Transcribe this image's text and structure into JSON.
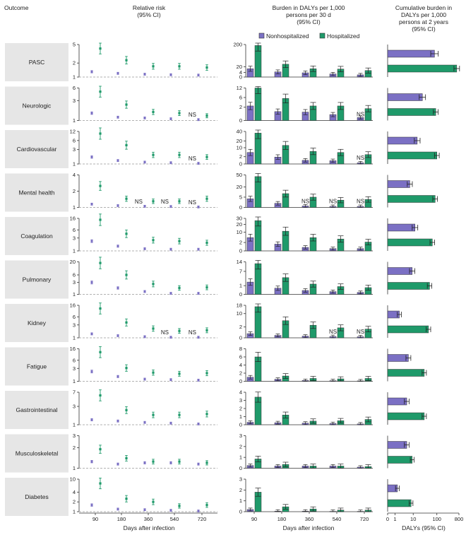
{
  "headers": {
    "outcome": "Outcome",
    "relative_risk": [
      "Relative risk",
      "(95% CI)"
    ],
    "burden": [
      "Burden in DALYs per 1,000",
      "persons per 30 d",
      "(95% CI)"
    ],
    "cumulative": [
      "Cumulative burden in",
      "DALYs per 1,000",
      "persons at 2 years",
      "(95% CI)"
    ]
  },
  "legend": {
    "nonhospitalized": "Nonhospitalized",
    "hospitalized": "Hospitalized"
  },
  "colors": {
    "nonhospitalized": "#7b70c4",
    "hospitalized": "#1f9a6a",
    "panel_bg": "#e6e6e6",
    "reference_line": "#999999"
  },
  "x_axis": {
    "days": [
      90,
      180,
      360,
      540,
      720
    ],
    "label": "Days after infection"
  },
  "cumulative_axis": {
    "label": "DALYs (95% CI)",
    "ticks": [
      0,
      1,
      10,
      100,
      800
    ],
    "scale": "symlog"
  },
  "ns_label": "NS",
  "chart_data": {
    "type": "forest-and-bar",
    "outcomes": [
      {
        "name": "PASC",
        "rr_ticks": [
          1,
          2,
          5
        ],
        "rr_max": 5,
        "rr_nonhosp": [
          1.3,
          1.2,
          1.15,
          1.12,
          1.1
        ],
        "rr_hosp": [
          4.1,
          2.3,
          1.7,
          1.7,
          1.6
        ],
        "rr_ns_nonhosp": [
          false,
          false,
          false,
          false,
          false
        ],
        "rr_ns_hosp": [
          false,
          false,
          false,
          false,
          false
        ],
        "burden_ticks": [
          0,
          4,
          20,
          200
        ],
        "burden_scale": "sqrt",
        "burden_max": 200,
        "burden_nonhosp": [
          13,
          5,
          3.4,
          1.8,
          0.9
        ],
        "burden_hosp": [
          188,
          31,
          13,
          12,
          8
        ],
        "burden_ns_nonhosp": [
          false,
          false,
          false,
          false,
          false
        ],
        "burden_ns_hosp": [
          false,
          false,
          false,
          false,
          false
        ],
        "cumulative_nonhosp": 80,
        "cumulative_hosp": 650
      },
      {
        "name": "Neurologic",
        "rr_ticks": [
          1,
          3,
          6
        ],
        "rr_max": 6,
        "rr_nonhosp": [
          1.5,
          1.2,
          1.15,
          1.1,
          1.05
        ],
        "rr_hosp": [
          4.9,
          2.4,
          1.6,
          1.5,
          1.3
        ],
        "rr_ns_nonhosp": [
          false,
          false,
          false,
          false,
          true
        ],
        "rr_ns_hosp": [
          false,
          false,
          false,
          false,
          false
        ],
        "burden_ticks": [
          0,
          2,
          6,
          12
        ],
        "burden_scale": "sqrt",
        "burden_max": 12,
        "burden_nonhosp": [
          2.4,
          0.9,
          0.8,
          0.4,
          0.1
        ],
        "burden_hosp": [
          12,
          5.5,
          2.4,
          2.4,
          1.6
        ],
        "burden_ns_nonhosp": [
          false,
          false,
          false,
          false,
          true
        ],
        "burden_ns_hosp": [
          false,
          false,
          false,
          false,
          false
        ],
        "cumulative_nonhosp": 25,
        "cumulative_hosp": 90
      },
      {
        "name": "Cardiovascular",
        "rr_ticks": [
          1,
          3,
          6,
          12
        ],
        "rr_max": 12,
        "rr_nonhosp": [
          1.7,
          1.3,
          1.15,
          1.1,
          1.05
        ],
        "rr_hosp": [
          10.2,
          4.2,
          2.0,
          2.0,
          1.7
        ],
        "rr_ns_nonhosp": [
          false,
          false,
          false,
          false,
          true
        ],
        "rr_ns_hosp": [
          false,
          false,
          false,
          false,
          false
        ],
        "burden_ticks": [
          0,
          2,
          10,
          20,
          40
        ],
        "burden_scale": "sqrt",
        "burden_max": 40,
        "burden_nonhosp": [
          5,
          1.8,
          0.5,
          0.4,
          0.05
        ],
        "burden_hosp": [
          36,
          13,
          6,
          5,
          3.3
        ],
        "burden_ns_nonhosp": [
          false,
          false,
          false,
          false,
          true
        ],
        "burden_ns_hosp": [
          false,
          false,
          false,
          false,
          false
        ],
        "cumulative_nonhosp": 15,
        "cumulative_hosp": 100
      },
      {
        "name": "Mental health",
        "rr_ticks": [
          1,
          2,
          4
        ],
        "rr_max": 4,
        "rr_nonhosp": [
          1.15,
          1.08,
          1.05,
          1.04,
          1.02
        ],
        "rr_hosp": [
          2.5,
          1.45,
          1.3,
          1.3,
          1.45
        ],
        "rr_ns_nonhosp": [
          false,
          false,
          true,
          true,
          true
        ],
        "rr_ns_hosp": [
          false,
          false,
          false,
          false,
          false
        ],
        "burden_ticks": [
          0,
          5,
          20,
          50
        ],
        "burden_scale": "sqrt",
        "burden_max": 50,
        "burden_nonhosp": [
          3.5,
          0.8,
          0.1,
          0.05,
          0.05
        ],
        "burden_hosp": [
          45,
          9,
          5,
          2.5,
          3
        ],
        "burden_ns_nonhosp": [
          false,
          false,
          true,
          true,
          true
        ],
        "burden_ns_hosp": [
          false,
          false,
          false,
          false,
          false
        ],
        "cumulative_nonhosp": 7,
        "cumulative_hosp": 85
      },
      {
        "name": "Coagulation",
        "rr_ticks": [
          1,
          3,
          6,
          16
        ],
        "rr_max": 16,
        "rr_nonhosp": [
          2.3,
          1.5,
          1.2,
          1.15,
          1.15
        ],
        "rr_hosp": [
          14.2,
          4.3,
          2.5,
          2.3,
          2.0
        ],
        "rr_ns_nonhosp": [
          false,
          false,
          false,
          false,
          false
        ],
        "rr_ns_hosp": [
          false,
          false,
          false,
          false,
          false
        ],
        "burden_ticks": [
          0,
          2,
          10,
          20,
          30
        ],
        "burden_scale": "sqrt",
        "burden_max": 30,
        "burden_nonhosp": [
          5,
          1.3,
          0.35,
          0.15,
          0.15
        ],
        "burden_hosp": [
          26,
          11,
          5,
          4,
          2.2
        ],
        "burden_ns_nonhosp": [
          false,
          false,
          false,
          false,
          false
        ],
        "burden_ns_hosp": [
          false,
          false,
          false,
          false,
          false
        ],
        "cumulative_nonhosp": 12,
        "cumulative_hosp": 65
      },
      {
        "name": "Pulmonary",
        "rr_ticks": [
          1,
          3,
          6,
          20
        ],
        "rr_max": 20,
        "rr_nonhosp": [
          3.0,
          1.8,
          1.3,
          1.1,
          1.1
        ],
        "rr_hosp": [
          18,
          6,
          2.6,
          1.8,
          1.9
        ],
        "rr_ns_nonhosp": [
          false,
          false,
          false,
          false,
          false
        ],
        "rr_ns_hosp": [
          false,
          false,
          false,
          false,
          false
        ],
        "burden_ticks": [
          0,
          1,
          7,
          14
        ],
        "burden_scale": "sqrt",
        "burden_max": 14,
        "burden_nonhosp": [
          2,
          0.5,
          0.2,
          0.1,
          0.05
        ],
        "burden_hosp": [
          12.5,
          3.7,
          1.4,
          0.8,
          0.6
        ],
        "burden_ns_nonhosp": [
          false,
          false,
          false,
          false,
          false
        ],
        "burden_ns_hosp": [
          false,
          false,
          false,
          false,
          false
        ],
        "cumulative_nonhosp": 9,
        "cumulative_hosp": 50
      },
      {
        "name": "Kidney",
        "rr_ticks": [
          1,
          3,
          6,
          16
        ],
        "rr_max": 16,
        "rr_nonhosp": [
          1.4,
          1.2,
          1.1,
          1.05,
          1.05
        ],
        "rr_hosp": [
          12.2,
          3.7,
          2.2,
          1.8,
          1.9
        ],
        "rr_ns_nonhosp": [
          false,
          false,
          false,
          true,
          true
        ],
        "rr_ns_hosp": [
          false,
          false,
          false,
          false,
          false
        ],
        "burden_ticks": [
          0,
          2,
          10,
          18
        ],
        "burden_scale": "sqrt",
        "burden_max": 18,
        "burden_nonhosp": [
          0.3,
          0.1,
          0.05,
          0.03,
          0.02
        ],
        "burden_hosp": [
          16.5,
          5,
          2.7,
          1.7,
          1.3
        ],
        "burden_ns_nonhosp": [
          false,
          false,
          false,
          true,
          true
        ],
        "burden_ns_hosp": [
          false,
          false,
          false,
          false,
          false
        ],
        "cumulative_nonhosp": 2,
        "cumulative_hosp": 45
      },
      {
        "name": "Fatigue",
        "rr_ticks": [
          1,
          3,
          6,
          16
        ],
        "rr_max": 16,
        "rr_nonhosp": [
          2.3,
          1.5,
          1.2,
          1.15,
          1.1
        ],
        "rr_hosp": [
          12,
          3.1,
          2.1,
          1.9,
          2.0
        ],
        "rr_ns_nonhosp": [
          false,
          false,
          false,
          false,
          false
        ],
        "rr_ns_hosp": [
          false,
          false,
          false,
          false,
          false
        ],
        "burden_ticks": [
          0,
          2,
          4,
          6,
          8
        ],
        "burden_scale": "linear",
        "burden_max": 8,
        "burden_nonhosp": [
          1.0,
          0.5,
          0.2,
          0.15,
          0.1
        ],
        "burden_hosp": [
          6.0,
          1.3,
          0.7,
          0.6,
          0.7
        ],
        "burden_ns_nonhosp": [
          false,
          false,
          false,
          false,
          false
        ],
        "burden_ns_hosp": [
          false,
          false,
          false,
          false,
          false
        ],
        "cumulative_nonhosp": 6,
        "cumulative_hosp": 30
      },
      {
        "name": "Gastrointestinal",
        "rr_ticks": [
          1,
          3,
          7
        ],
        "rr_max": 7,
        "rr_nonhosp": [
          1.35,
          1.25,
          1.15,
          1.1,
          1.05
        ],
        "rr_hosp": [
          5.8,
          2.4,
          1.8,
          1.8,
          1.9
        ],
        "rr_ns_nonhosp": [
          false,
          false,
          false,
          false,
          false
        ],
        "rr_ns_hosp": [
          false,
          false,
          false,
          false,
          false
        ],
        "burden_ticks": [
          0,
          1,
          2,
          3,
          4
        ],
        "burden_scale": "linear",
        "burden_max": 4,
        "burden_nonhosp": [
          0.3,
          0.25,
          0.2,
          0.15,
          0.1
        ],
        "burden_hosp": [
          3.4,
          1.2,
          0.45,
          0.5,
          0.65
        ],
        "burden_ns_nonhosp": [
          false,
          false,
          false,
          false,
          false
        ],
        "burden_ns_hosp": [
          false,
          false,
          false,
          false,
          false
        ],
        "cumulative_nonhosp": 5,
        "cumulative_hosp": 30
      },
      {
        "name": "Musculoskeletal",
        "rr_ticks": [
          1,
          2,
          3
        ],
        "rr_max": 3,
        "rr_nonhosp": [
          1.25,
          1.15,
          1.2,
          1.2,
          1.15
        ],
        "rr_hosp": [
          1.9,
          1.4,
          1.25,
          1.25,
          1.2
        ],
        "rr_ns_nonhosp": [
          false,
          false,
          false,
          false,
          false
        ],
        "rr_ns_hosp": [
          false,
          false,
          false,
          false,
          false
        ],
        "burden_ticks": [
          0,
          1,
          2,
          3
        ],
        "burden_scale": "linear",
        "burden_max": 3,
        "burden_nonhosp": [
          0.25,
          0.2,
          0.2,
          0.2,
          0.1
        ],
        "burden_hosp": [
          0.85,
          0.35,
          0.2,
          0.2,
          0.15
        ],
        "burden_ns_nonhosp": [
          false,
          false,
          false,
          false,
          false
        ],
        "burden_ns_hosp": [
          false,
          false,
          false,
          false,
          false
        ],
        "cumulative_nonhosp": 5,
        "cumulative_hosp": 9
      },
      {
        "name": "Diabetes",
        "rr_ticks": [
          1,
          2,
          4,
          10
        ],
        "rr_max": 10,
        "rr_nonhosp": [
          1.6,
          1.2,
          1.15,
          1.1,
          1.05
        ],
        "rr_hosp": [
          7.4,
          2.5,
          2.0,
          1.5,
          1.6
        ],
        "rr_ns_nonhosp": [
          false,
          false,
          false,
          false,
          false
        ],
        "rr_ns_hosp": [
          false,
          false,
          false,
          false,
          false
        ],
        "burden_ticks": [
          0,
          1,
          2,
          3
        ],
        "burden_scale": "linear",
        "burden_max": 3,
        "burden_nonhosp": [
          0.2,
          0.05,
          0.05,
          0.03,
          0.03
        ],
        "burden_hosp": [
          1.8,
          0.45,
          0.25,
          0.15,
          0.15
        ],
        "burden_ns_nonhosp": [
          false,
          false,
          false,
          false,
          false
        ],
        "burden_ns_hosp": [
          false,
          false,
          false,
          false,
          false
        ],
        "cumulative_nonhosp": 1.5,
        "cumulative_hosp": 8
      }
    ]
  }
}
